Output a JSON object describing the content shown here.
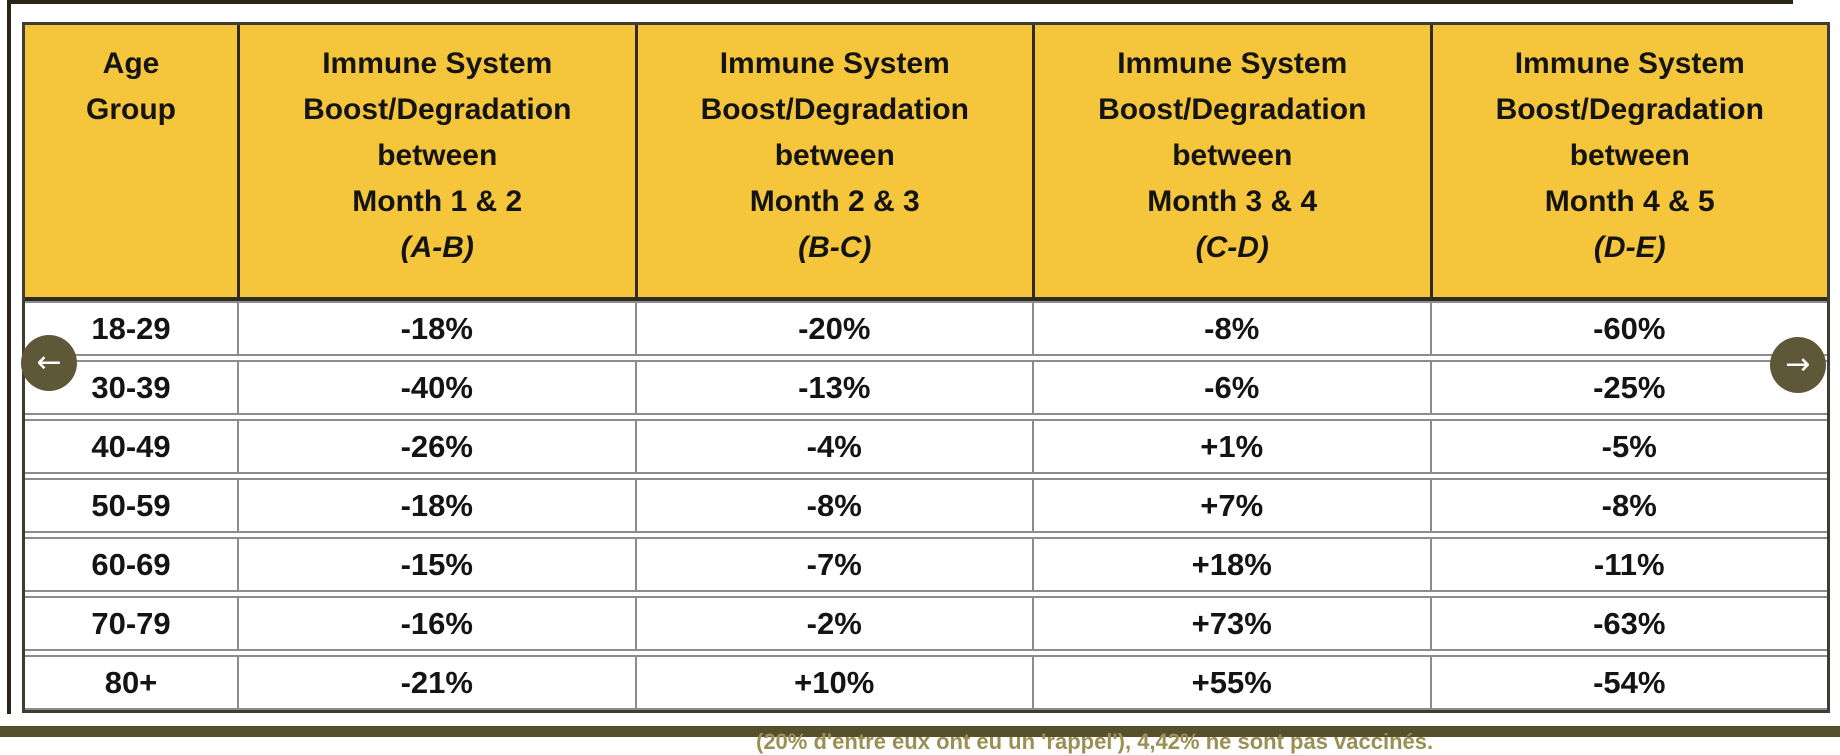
{
  "carousel": {
    "prev_icon": "←",
    "next_icon": "→"
  },
  "table": {
    "age_header": {
      "l1": "Age",
      "l2": "Group"
    },
    "measure_headers": [
      {
        "l1": "Immune System",
        "l2": "Boost/Degradation",
        "l3": "between",
        "l4": "Month 1 & 2",
        "l5": "(A-B)"
      },
      {
        "l1": "Immune System",
        "l2": "Boost/Degradation",
        "l3": "between",
        "l4": "Month 2 & 3",
        "l5": "(B-C)"
      },
      {
        "l1": "Immune System",
        "l2": "Boost/Degradation",
        "l3": "between",
        "l4": "Month 3 & 4",
        "l5": "(C-D)"
      },
      {
        "l1": "Immune System",
        "l2": "Boost/Degradation",
        "l3": "between",
        "l4": "Month 4 & 5",
        "l5": "(D-E)"
      }
    ],
    "rows": [
      {
        "age": "18-29",
        "values": [
          "-18%",
          "-20%",
          "-8%",
          "-60%"
        ]
      },
      {
        "age": "30-39",
        "values": [
          "-40%",
          "-13%",
          "-6%",
          "-25%"
        ]
      },
      {
        "age": "40-49",
        "values": [
          "-26%",
          "-4%",
          "+1%",
          "-5%"
        ]
      },
      {
        "age": "50-59",
        "values": [
          "-18%",
          "-8%",
          "+7%",
          "-8%"
        ]
      },
      {
        "age": "60-69",
        "values": [
          "-15%",
          "-7%",
          "+18%",
          "-11%"
        ]
      },
      {
        "age": "70-79",
        "values": [
          "-16%",
          "-2%",
          "+73%",
          "-63%"
        ]
      },
      {
        "age": "80+",
        "values": [
          "-21%",
          "+10%",
          "+55%",
          "-54%"
        ]
      }
    ]
  },
  "footer": {
    "caption": "(20% d'entre eux ont eu un 'rappel'), 4,42% ne sont pas vaccinés."
  },
  "colors": {
    "header_bg": "#F5C63B",
    "nav_button": "#5E5839",
    "footer_bar": "#57502C"
  }
}
